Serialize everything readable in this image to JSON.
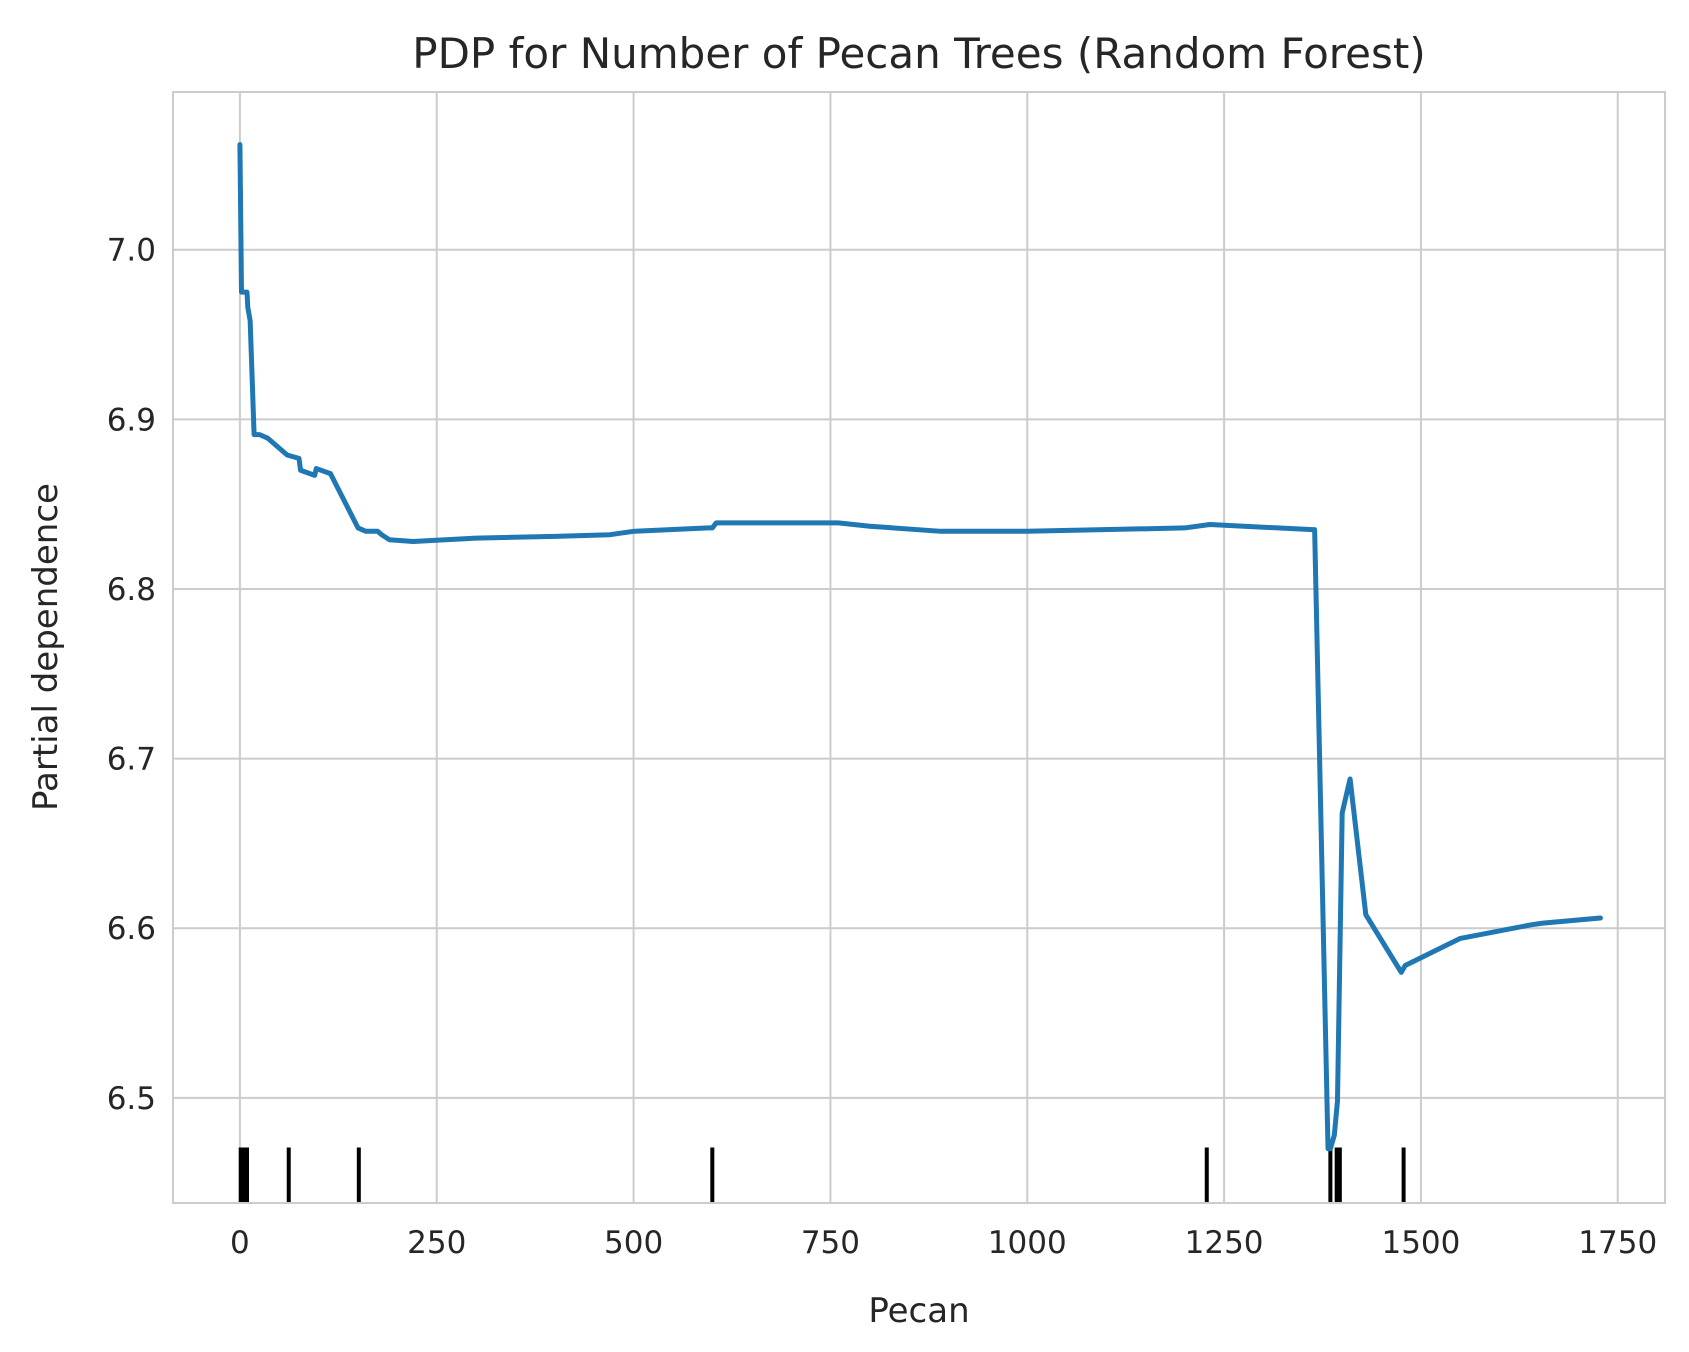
{
  "chart_data": {
    "type": "line",
    "title": "PDP for Number of Pecan Trees (Random Forest)",
    "xlabel": "Pecan",
    "ylabel": "Partial dependence",
    "xlim": [
      -85,
      1810
    ],
    "ylim": [
      6.438,
      7.093
    ],
    "x_ticks": [
      0,
      250,
      500,
      750,
      1000,
      1250,
      1500,
      1750
    ],
    "x_tick_labels": [
      "0",
      "250",
      "500",
      "750",
      "1000",
      "1250",
      "1500",
      "1750"
    ],
    "y_ticks": [
      6.5,
      6.6,
      6.7,
      6.8,
      6.9,
      7.0
    ],
    "y_tick_labels": [
      "6.5",
      "6.6",
      "6.7",
      "6.8",
      "6.9",
      "7.0"
    ],
    "grid": true,
    "series": [
      {
        "color": "#1f77b4",
        "x": [
          0,
          2,
          4,
          9,
          10,
          13,
          18,
          25,
          35,
          60,
          75,
          77,
          95,
          97,
          115,
          150,
          160,
          175,
          180,
          190,
          220,
          300,
          400,
          470,
          500,
          595,
          600,
          605,
          760,
          800,
          890,
          1000,
          1200,
          1232,
          1362,
          1365,
          1382,
          1385,
          1390,
          1394,
          1400,
          1410,
          1430,
          1475,
          1480,
          1550,
          1640,
          1655,
          1728
        ],
        "y": [
          7.062,
          6.975,
          6.975,
          6.975,
          6.966,
          6.958,
          6.891,
          6.891,
          6.889,
          6.879,
          6.877,
          6.87,
          6.867,
          6.871,
          6.868,
          6.836,
          6.834,
          6.834,
          6.832,
          6.829,
          6.828,
          6.83,
          6.831,
          6.832,
          6.834,
          6.836,
          6.836,
          6.839,
          6.839,
          6.837,
          6.834,
          6.834,
          6.836,
          6.838,
          6.835,
          6.835,
          6.47,
          6.47,
          6.478,
          6.498,
          6.668,
          6.688,
          6.608,
          6.574,
          6.578,
          6.594,
          6.602,
          6.603,
          6.606
        ]
      }
    ],
    "rug_x": [
      1,
      5,
      9,
      62,
      151,
      600,
      1228,
      1385,
      1393,
      1397,
      1478
    ]
  }
}
